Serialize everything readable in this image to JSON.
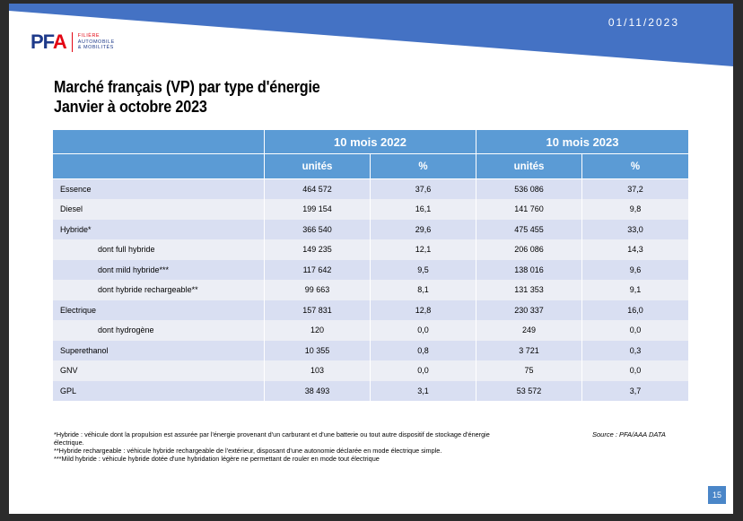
{
  "header": {
    "date": "01/11/2023",
    "logo": {
      "mark_pf": "PF",
      "mark_a": "A",
      "line1": "FILIÈRE",
      "line2": "AUTOMOBILE",
      "line3": "& MOBILITÉS"
    },
    "colors": {
      "banner": "#4472c4",
      "accent": "#e30613"
    }
  },
  "title": {
    "line1": "Marché français (VP) par type d'énergie",
    "line2": "Janvier à octobre 2023"
  },
  "table": {
    "period_2022": "10 mois 2022",
    "period_2023": "10 mois 2023",
    "col_units": "unités",
    "col_pct": "%",
    "rows": [
      {
        "label": "Essence",
        "u2022": "464 572",
        "p2022": "37,6",
        "u2023": "536 086",
        "p2023": "37,2"
      },
      {
        "label": "Diesel",
        "u2022": "199 154",
        "p2022": "16,1",
        "u2023": "141 760",
        "p2023": "9,8"
      },
      {
        "label": "Hybride*",
        "u2022": "366 540",
        "p2022": "29,6",
        "u2023": "475 455",
        "p2023": "33,0"
      },
      {
        "label": "dont full hybride",
        "u2022": "149 235",
        "p2022": "12,1",
        "u2023": "206 086",
        "p2023": "14,3"
      },
      {
        "label": "dont mild hybride***",
        "u2022": "117 642",
        "p2022": "9,5",
        "u2023": "138 016",
        "p2023": "9,6"
      },
      {
        "label": "dont hybride rechargeable**",
        "u2022": "99 663",
        "p2022": "8,1",
        "u2023": "131 353",
        "p2023": "9,1"
      },
      {
        "label": "Electrique",
        "u2022": "157 831",
        "p2022": "12,8",
        "u2023": "230 337",
        "p2023": "16,0"
      },
      {
        "label": "dont hydrogène",
        "u2022": "120",
        "p2022": "0,0",
        "u2023": "249",
        "p2023": "0,0"
      },
      {
        "label": "Superethanol",
        "u2022": "10 355",
        "p2022": "0,8",
        "u2023": "3 721",
        "p2023": "0,3"
      },
      {
        "label": "GNV",
        "u2022": "103",
        "p2022": "0,0",
        "u2023": "75",
        "p2023": "0,0"
      },
      {
        "label": "GPL",
        "u2022": "38 493",
        "p2022": "3,1",
        "u2023": "53 572",
        "p2023": "3,7"
      }
    ]
  },
  "notes": {
    "n1": "*Hybride : véhicule dont la propulsion est assurée par l'énergie provenant d'un carburant et d'une batterie ou tout autre dispositif de stockage d'énergie électrique.",
    "n2": "**Hybride rechargeable : véhicule hybride rechargeable de l'extérieur, disposant d'une autonomie déclarée en mode électrique simple.",
    "n3": "***Mild hybride : véhicule hybride dotée d'une hybridation légère ne permettant de rouler en mode tout électrique"
  },
  "source": "Source : PFA/AAA DATA",
  "page_number": "15"
}
